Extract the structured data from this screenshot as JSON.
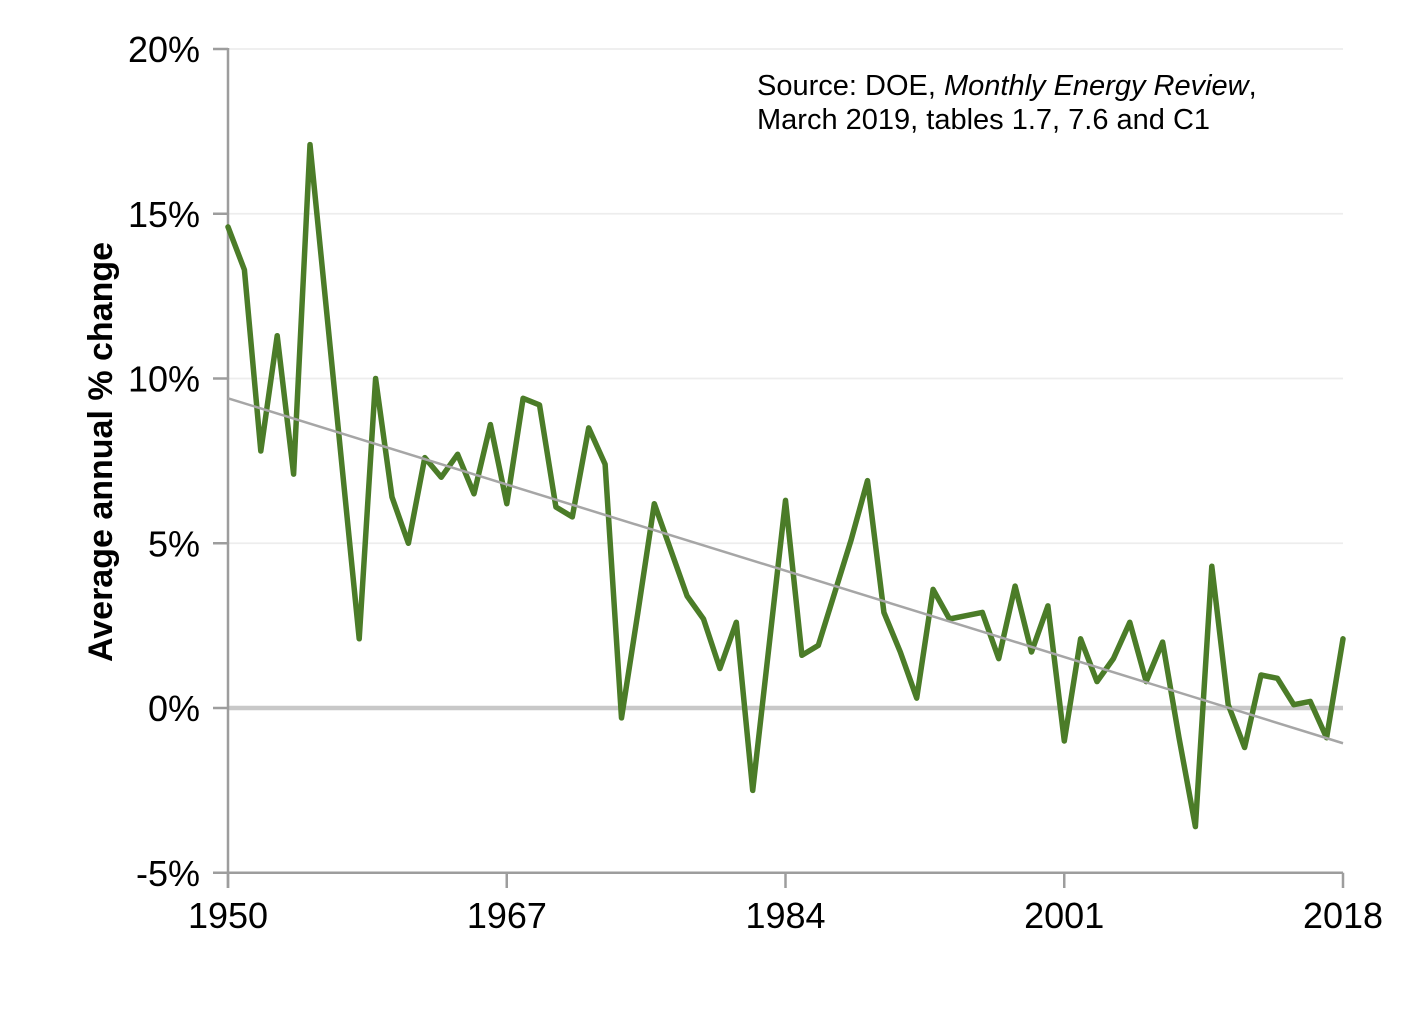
{
  "figure": {
    "background": "#ffffff",
    "y_axis_title": "Average annual % change",
    "source_note": {
      "line1_prefix": "Source: DOE, ",
      "line1_italic": "Monthly Energy Review",
      "line1_suffix": ",",
      "line2": "March 2019, tables 1.7, 7.6 and C1"
    }
  },
  "chart_data": {
    "type": "line",
    "title": "",
    "xlabel": "",
    "ylabel": "Average annual % change",
    "xlim": [
      1950,
      2018
    ],
    "ylim": [
      -5,
      20
    ],
    "grid": "horizontal",
    "legend": "none",
    "zero_line": true,
    "x": [
      1950,
      1951,
      1952,
      1953,
      1954,
      1955,
      1956,
      1957,
      1958,
      1959,
      1960,
      1961,
      1962,
      1963,
      1964,
      1965,
      1966,
      1967,
      1968,
      1969,
      1970,
      1971,
      1972,
      1973,
      1974,
      1975,
      1976,
      1977,
      1978,
      1979,
      1980,
      1981,
      1982,
      1983,
      1984,
      1985,
      1986,
      1987,
      1988,
      1989,
      1990,
      1991,
      1992,
      1993,
      1994,
      1995,
      1996,
      1997,
      1998,
      1999,
      2000,
      2001,
      2002,
      2003,
      2004,
      2005,
      2006,
      2007,
      2008,
      2009,
      2010,
      2011,
      2012,
      2013,
      2014,
      2015,
      2016,
      2017,
      2018
    ],
    "series": [
      {
        "name": "Average annual % change",
        "color": "#4b7c28",
        "values": [
          14.6,
          13.3,
          7.8,
          11.3,
          7.1,
          17.1,
          12.1,
          7.1,
          2.1,
          10.0,
          6.4,
          5.0,
          7.6,
          7.0,
          7.7,
          6.5,
          8.6,
          6.2,
          9.4,
          9.2,
          6.1,
          5.8,
          8.5,
          7.4,
          -0.3,
          2.9,
          6.2,
          4.8,
          3.4,
          2.7,
          1.2,
          2.6,
          -2.5,
          1.9,
          6.3,
          1.6,
          1.9,
          3.5,
          5.1,
          6.9,
          2.9,
          1.7,
          0.3,
          3.6,
          2.7,
          2.8,
          2.9,
          1.5,
          3.7,
          1.7,
          3.1,
          -1.0,
          2.1,
          0.8,
          1.5,
          2.6,
          0.8,
          2.0,
          -0.9,
          -3.6,
          4.3,
          0.1,
          -1.2,
          1.0,
          0.9,
          0.1,
          0.2,
          -0.9,
          2.1
        ]
      },
      {
        "name": "Linear trend",
        "type": "straight",
        "color": "#a6a6a6",
        "x": [
          1950,
          2018
        ],
        "values": [
          9.4,
          -1.07
        ]
      }
    ],
    "y_ticks": [
      "20%",
      "15%",
      "10%",
      "5%",
      "0%",
      "-5%"
    ],
    "y_tick_values": [
      20,
      15,
      10,
      5,
      0,
      -5
    ],
    "x_tick_labels": [
      "1950",
      "1967",
      "1984",
      "2001",
      "2018"
    ],
    "x_tick_values": [
      1950,
      1967,
      1984,
      2001,
      2018
    ]
  },
  "colors": {
    "line_green": "#4b7c28",
    "trend_gray": "#a6a6a6",
    "zero_line_gray": "#c8c8c8",
    "axis_gray": "#9d9d9d",
    "gridline_gray": "#ededed",
    "text_black": "#000000"
  }
}
